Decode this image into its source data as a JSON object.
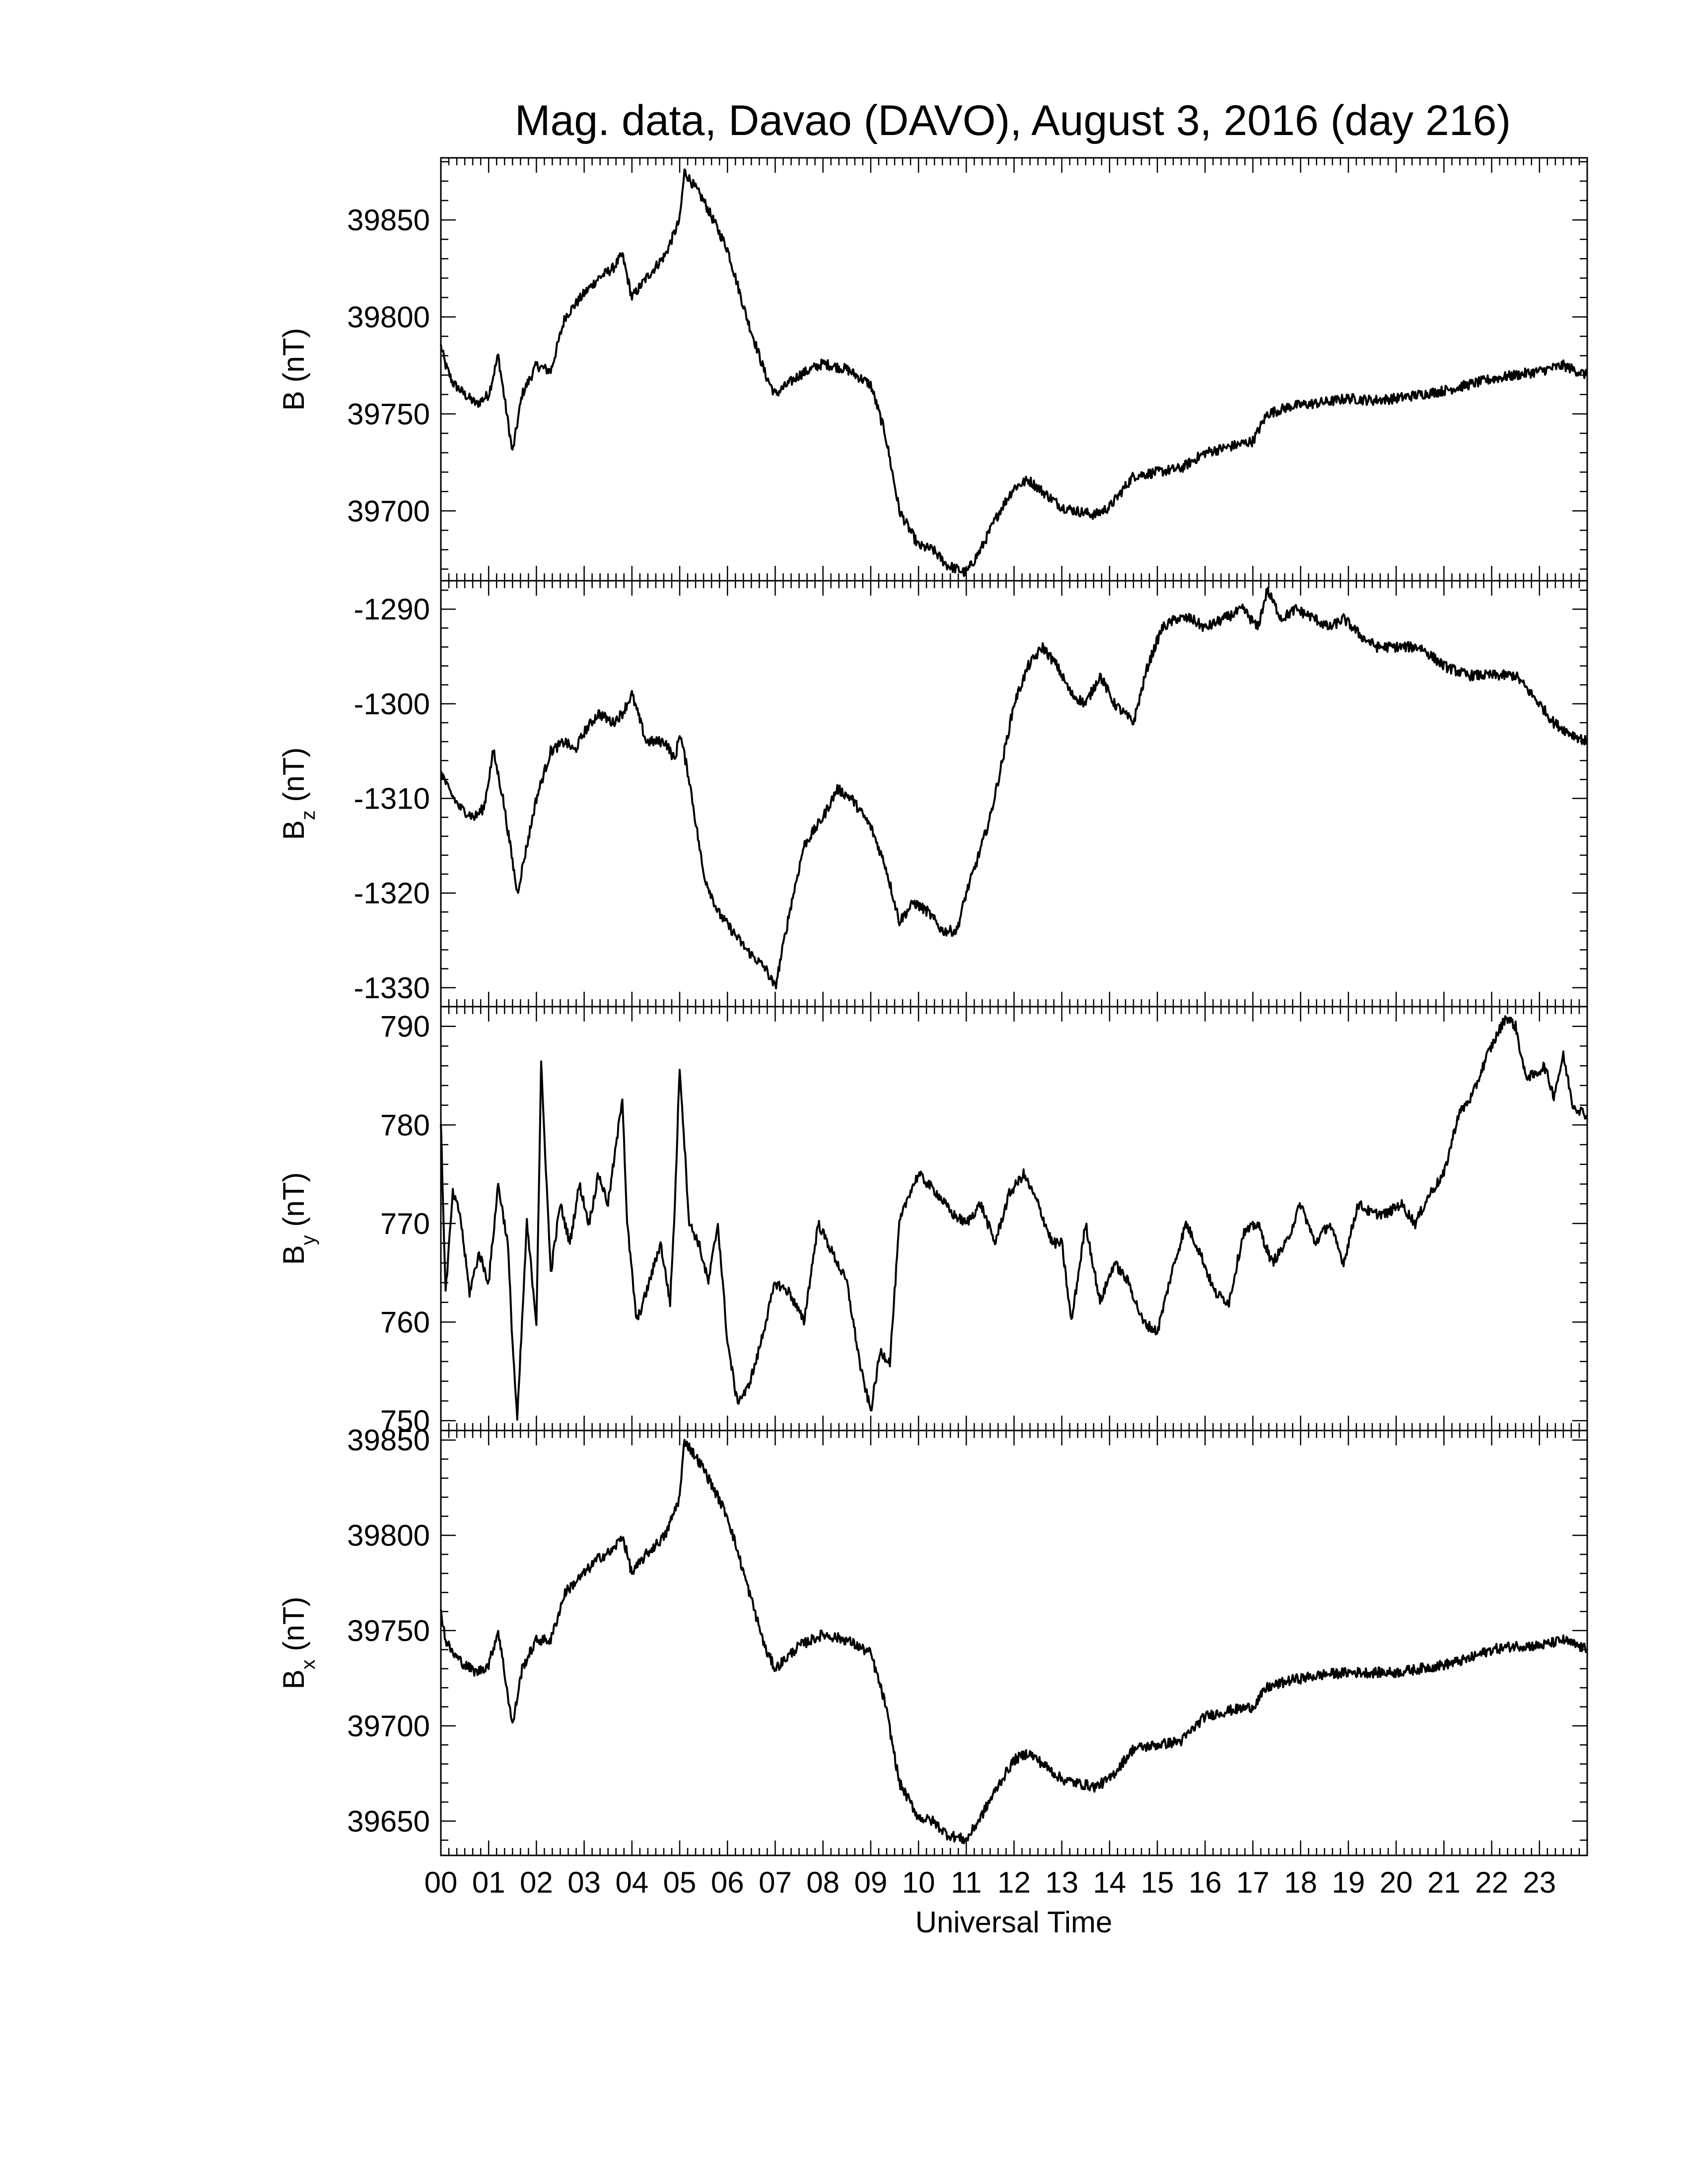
{
  "title": "Mag. data, Davao (DAVO), August 3, 2016 (day 216)",
  "xlabel": "Universal Time",
  "x_ticks": [
    "00",
    "01",
    "02",
    "03",
    "04",
    "05",
    "06",
    "07",
    "08",
    "09",
    "10",
    "11",
    "12",
    "13",
    "14",
    "15",
    "16",
    "17",
    "18",
    "19",
    "20",
    "21",
    "22",
    "23"
  ],
  "line_color": "#000000",
  "chart_data": [
    {
      "type": "line",
      "ylabel": "B (nT)",
      "ylabel_main": "B",
      "ylabel_sub": "",
      "ylabel_unit": " (nT)",
      "ylim": [
        39664,
        39882
      ],
      "yticks": [
        39700,
        39750,
        39800,
        39850
      ],
      "xlim": [
        0,
        24
      ],
      "series": [
        {
          "x": [
            0,
            0.1,
            0.25,
            0.5,
            0.75,
            1.0,
            1.2,
            1.5,
            1.7,
            2.0,
            2.3,
            2.6,
            3.0,
            3.3,
            3.6,
            3.8,
            4.0,
            4.3,
            4.7,
            5.0,
            5.1,
            5.5,
            6.0,
            6.4,
            6.8,
            7.0,
            7.5,
            8.0,
            8.5,
            9.0,
            9.3,
            9.6,
            10.0,
            10.3,
            10.6,
            11.0,
            11.3,
            11.7,
            12.0,
            12.3,
            12.7,
            13.0,
            13.3,
            13.7,
            14.0,
            14.5,
            15.0,
            15.5,
            16.0,
            16.5,
            17.0,
            17.3,
            17.8,
            18.5,
            19.0,
            19.5,
            20.0,
            20.5,
            21.0,
            21.5,
            22.0,
            22.5,
            23.0,
            23.5,
            23.99
          ],
          "y": [
            39785,
            39775,
            39766,
            39760,
            39755,
            39760,
            39780,
            39730,
            39760,
            39775,
            39772,
            39800,
            39812,
            39820,
            39825,
            39832,
            39810,
            39820,
            39832,
            39850,
            39875,
            39860,
            39835,
            39800,
            39770,
            39760,
            39770,
            39776,
            39773,
            39765,
            39740,
            39700,
            39682,
            39680,
            39672,
            39668,
            39680,
            39700,
            39712,
            39716,
            39708,
            39702,
            39700,
            39698,
            39702,
            39718,
            39720,
            39722,
            39730,
            39733,
            39736,
            39750,
            39754,
            39756,
            39758,
            39757,
            39758,
            39760,
            39762,
            39765,
            39768,
            39770,
            39772,
            39775,
            39770
          ]
        }
      ]
    },
    {
      "type": "line",
      "ylabel": "Bz (nT)",
      "ylabel_main": "B",
      "ylabel_sub": "z",
      "ylabel_unit": " (nT)",
      "ylim": [
        -1332,
        -1287
      ],
      "yticks": [
        -1330,
        -1320,
        -1310,
        -1300,
        -1290
      ],
      "xlim": [
        0,
        24
      ],
      "series": [
        {
          "x": [
            0,
            0.15,
            0.4,
            0.7,
            0.9,
            1.1,
            1.3,
            1.6,
            1.8,
            2.0,
            2.3,
            2.6,
            2.8,
            3.0,
            3.3,
            3.6,
            3.8,
            4.0,
            4.3,
            4.7,
            4.9,
            5.0,
            5.2,
            5.5,
            5.8,
            6.1,
            6.4,
            6.8,
            7.0,
            7.3,
            7.6,
            8.0,
            8.3,
            8.6,
            9.0,
            9.3,
            9.6,
            9.9,
            10.2,
            10.5,
            10.8,
            11.0,
            11.2,
            11.5,
            11.8,
            12.0,
            12.3,
            12.6,
            12.9,
            13.2,
            13.5,
            13.8,
            14.1,
            14.5,
            14.8,
            15.1,
            15.4,
            15.7,
            16.0,
            16.4,
            16.8,
            17.1,
            17.3,
            17.6,
            17.9,
            18.3,
            18.6,
            18.9,
            19.3,
            19.6,
            20.0,
            20.5,
            21.0,
            21.5,
            22.0,
            22.5,
            23.0,
            23.3,
            23.6,
            23.99
          ],
          "y": [
            -1307,
            -1309,
            -1311,
            -1312,
            -1311,
            -1305,
            -1310,
            -1320,
            -1315,
            -1310,
            -1305,
            -1304,
            -1305,
            -1303,
            -1301,
            -1302,
            -1301,
            -1299,
            -1304,
            -1304,
            -1306,
            -1303,
            -1308,
            -1318,
            -1322,
            -1324,
            -1326,
            -1328,
            -1330,
            -1322,
            -1315,
            -1312,
            -1309,
            -1310,
            -1313,
            -1317,
            -1323,
            -1321,
            -1322,
            -1324,
            -1324,
            -1320,
            -1317,
            -1312,
            -1305,
            -1300,
            -1296,
            -1294,
            -1296,
            -1299,
            -1300,
            -1297,
            -1300,
            -1302,
            -1296,
            -1292,
            -1291,
            -1291,
            -1292,
            -1291,
            -1290,
            -1292,
            -1288,
            -1291,
            -1290,
            -1291,
            -1292,
            -1291,
            -1293,
            -1294,
            -1294,
            -1294,
            -1296,
            -1297,
            -1297,
            -1297,
            -1300,
            -1302,
            -1303,
            -1304
          ]
        }
      ]
    },
    {
      "type": "line",
      "ylabel": "By (nT)",
      "ylabel_main": "B",
      "ylabel_sub": "y",
      "ylabel_unit": " (nT)",
      "ylim": [
        749,
        792
      ],
      "yticks": [
        750,
        760,
        770,
        780,
        790
      ],
      "xlim": [
        0,
        24
      ],
      "series": [
        {
          "x": [
            0,
            0.1,
            0.25,
            0.4,
            0.6,
            0.8,
            1.0,
            1.2,
            1.4,
            1.5,
            1.6,
            1.8,
            2.0,
            2.1,
            2.3,
            2.5,
            2.7,
            2.9,
            3.1,
            3.3,
            3.5,
            3.7,
            3.8,
            3.9,
            4.1,
            4.3,
            4.6,
            4.8,
            4.9,
            5.0,
            5.2,
            5.4,
            5.6,
            5.8,
            6.0,
            6.2,
            6.4,
            6.6,
            6.8,
            7.0,
            7.3,
            7.6,
            7.9,
            8.2,
            8.5,
            8.8,
            9.0,
            9.2,
            9.4,
            9.6,
            9.8,
            10.0,
            10.2,
            10.4,
            10.7,
            11.0,
            11.3,
            11.6,
            11.9,
            12.2,
            12.5,
            12.8,
            13.0,
            13.2,
            13.5,
            13.8,
            14.1,
            14.4,
            14.7,
            15.0,
            15.3,
            15.6,
            15.9,
            16.2,
            16.5,
            16.8,
            17.1,
            17.4,
            17.7,
            18.0,
            18.3,
            18.6,
            18.9,
            19.2,
            19.5,
            19.8,
            20.1,
            20.4,
            20.7,
            21.0,
            21.3,
            21.6,
            21.9,
            22.1,
            22.3,
            22.5,
            22.7,
            22.9,
            23.1,
            23.3,
            23.5,
            23.7,
            23.99
          ],
          "y": [
            780,
            763,
            773,
            771,
            763,
            767,
            764,
            774,
            768,
            758,
            750,
            770,
            760,
            786,
            765,
            772,
            768,
            774,
            770,
            775,
            772,
            779,
            783,
            770,
            760,
            763,
            768,
            762,
            772,
            786,
            770,
            768,
            764,
            770,
            758,
            752,
            753,
            756,
            760,
            764,
            763,
            760,
            770,
            767,
            764,
            755,
            751,
            757,
            756,
            770,
            773,
            775,
            774,
            773,
            771,
            770,
            772,
            768,
            773,
            775,
            772,
            768,
            768,
            760,
            770,
            762,
            766,
            764,
            760,
            759,
            765,
            770,
            767,
            763,
            762,
            769,
            770,
            766,
            768,
            772,
            768,
            770,
            766,
            772,
            771,
            771,
            772,
            770,
            773,
            775,
            781,
            783,
            787,
            789,
            791,
            790,
            785,
            785,
            786,
            783,
            787,
            782,
            781
          ]
        }
      ]
    },
    {
      "type": "line",
      "ylabel": "Bx (nT)",
      "ylabel_main": "B",
      "ylabel_sub": "x",
      "ylabel_unit": " (nT)",
      "ylim": [
        39632,
        39855
      ],
      "yticks": [
        39650,
        39700,
        39750,
        39800,
        39850
      ],
      "xlim": [
        0,
        24
      ],
      "series": [
        {
          "x": [
            0,
            0.1,
            0.25,
            0.5,
            0.75,
            1.0,
            1.2,
            1.5,
            1.7,
            2.0,
            2.3,
            2.6,
            3.0,
            3.3,
            3.6,
            3.8,
            4.0,
            4.3,
            4.7,
            5.0,
            5.1,
            5.5,
            6.0,
            6.4,
            6.8,
            7.0,
            7.5,
            8.0,
            8.5,
            9.0,
            9.3,
            9.6,
            10.0,
            10.3,
            10.6,
            11.0,
            11.3,
            11.7,
            12.0,
            12.3,
            12.7,
            13.0,
            13.3,
            13.7,
            14.0,
            14.5,
            15.0,
            15.5,
            16.0,
            16.5,
            17.0,
            17.3,
            17.8,
            18.5,
            19.0,
            19.5,
            20.0,
            20.5,
            21.0,
            21.5,
            22.0,
            22.5,
            23.0,
            23.5,
            23.99
          ],
          "y": [
            39760,
            39745,
            39738,
            39732,
            39728,
            39732,
            39750,
            39700,
            39730,
            39745,
            39745,
            39770,
            39780,
            39788,
            39792,
            39800,
            39780,
            39790,
            39800,
            39820,
            39850,
            39835,
            39810,
            39775,
            39740,
            39730,
            39742,
            39748,
            39745,
            39738,
            39712,
            39670,
            39652,
            39650,
            39643,
            39640,
            39652,
            39670,
            39682,
            39686,
            39678,
            39672,
            39670,
            39668,
            39672,
            39688,
            39690,
            39692,
            39705,
            39708,
            39710,
            39720,
            39724,
            39727,
            39728,
            39728,
            39728,
            39730,
            39732,
            39735,
            39740,
            39742,
            39742,
            39745,
            39740
          ]
        }
      ]
    }
  ]
}
